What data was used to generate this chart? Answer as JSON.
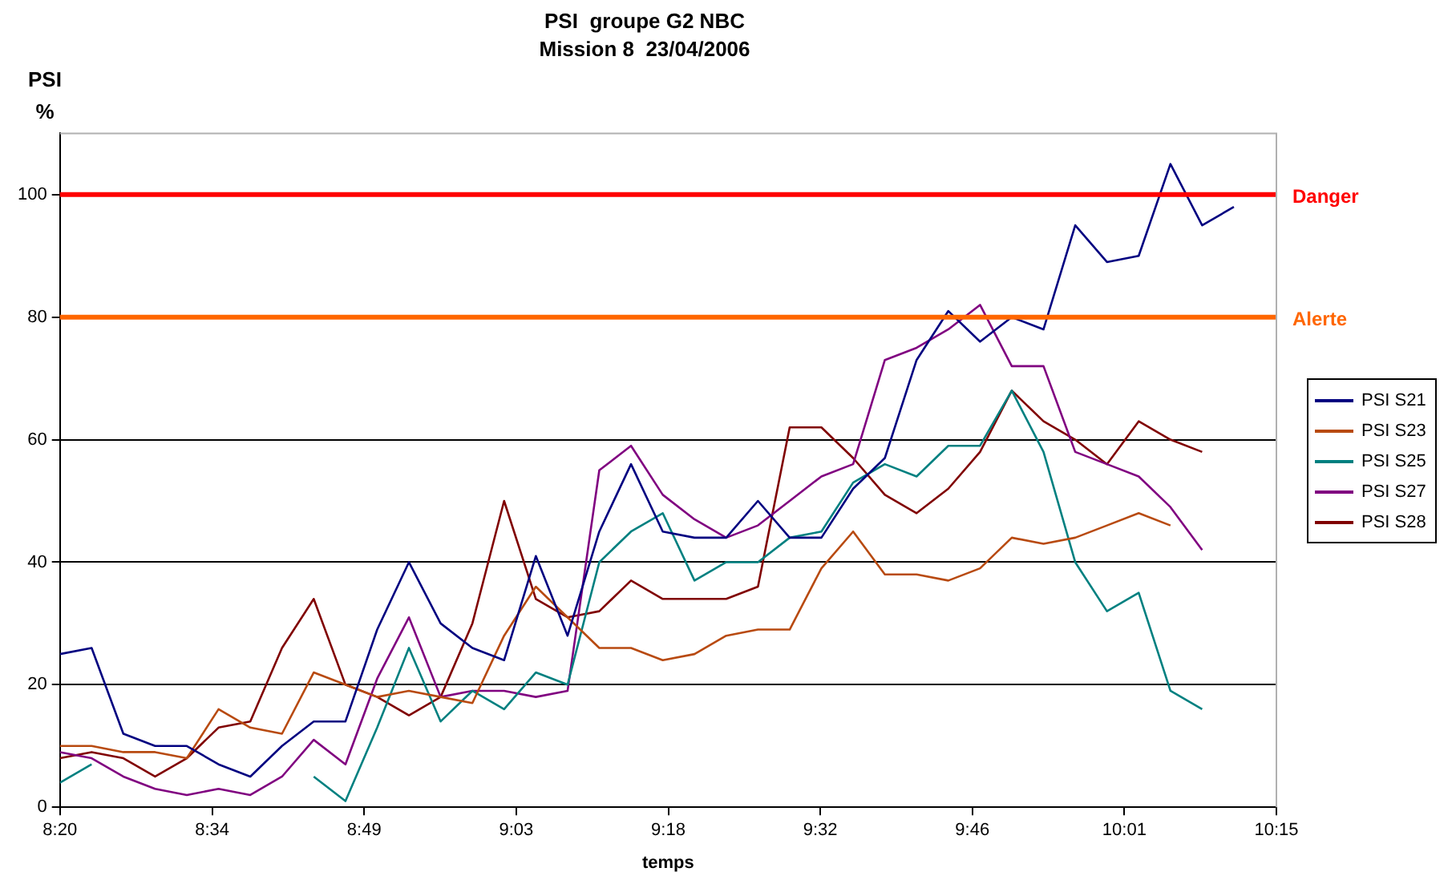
{
  "chart_data": {
    "type": "line",
    "title": "PSI  groupe G2 NBC",
    "subtitle": "Mission 8  23/04/2006",
    "xlabel": "temps",
    "ylabel": "PSI\n%",
    "x": [
      8.333,
      8.383,
      8.433,
      8.483,
      8.533,
      8.583,
      8.633,
      8.683,
      8.733,
      8.783,
      8.833,
      8.883,
      8.933,
      8.983,
      9.033,
      9.083,
      9.133,
      9.183,
      9.233,
      9.283,
      9.333,
      9.383,
      9.433,
      9.483,
      9.533,
      9.583,
      9.633,
      9.683,
      9.733,
      9.783,
      9.833,
      9.883,
      9.933,
      9.983,
      10.033,
      10.083,
      10.133,
      10.183
    ],
    "series": [
      {
        "name": "PSI S21",
        "color": "#000080",
        "values": [
          25,
          26,
          12,
          10,
          10,
          7,
          5,
          10,
          14,
          14,
          29,
          40,
          30,
          26,
          24,
          41,
          28,
          45,
          56,
          45,
          44,
          44,
          50,
          44,
          44,
          52,
          57,
          73,
          81,
          76,
          80,
          78,
          95,
          89,
          90,
          105,
          95,
          98
        ]
      },
      {
        "name": "PSI S23",
        "color": "#b84a10",
        "values": [
          10,
          10,
          9,
          9,
          8,
          16,
          13,
          12,
          22,
          20,
          18,
          19,
          18,
          17,
          28,
          36,
          31,
          26,
          26,
          24,
          25,
          28,
          29,
          29,
          39,
          45,
          38,
          38,
          37,
          39,
          44,
          43,
          44,
          46,
          48,
          46,
          null,
          null
        ]
      },
      {
        "name": "PSI S25",
        "color": "#008080",
        "values": [
          4,
          7,
          null,
          null,
          null,
          null,
          null,
          null,
          5,
          1,
          13,
          26,
          14,
          19,
          16,
          22,
          20,
          40,
          45,
          48,
          37,
          40,
          40,
          44,
          45,
          53,
          56,
          54,
          59,
          59,
          68,
          58,
          40,
          32,
          35,
          19,
          16,
          null
        ]
      },
      {
        "name": "PSI S27",
        "color": "#800080",
        "values": [
          9,
          8,
          5,
          3,
          2,
          3,
          2,
          5,
          11,
          7,
          21,
          31,
          18,
          19,
          19,
          18,
          19,
          55,
          59,
          51,
          47,
          44,
          46,
          50,
          54,
          56,
          73,
          75,
          78,
          82,
          72,
          72,
          58,
          56,
          54,
          49,
          42,
          null
        ]
      },
      {
        "name": "PSI S28",
        "color": "#800000",
        "values": [
          8,
          9,
          8,
          5,
          8,
          13,
          14,
          26,
          34,
          20,
          18,
          15,
          18,
          30,
          50,
          34,
          31,
          32,
          37,
          34,
          34,
          34,
          36,
          62,
          62,
          57,
          51,
          48,
          52,
          58,
          68,
          63,
          60,
          56,
          63,
          60,
          58,
          null
        ]
      }
    ],
    "xlim": [
      8.333,
      10.25
    ],
    "xticks": [
      {
        "value": 8.333,
        "label": "8:20"
      },
      {
        "value": 8.5729,
        "label": "8:34"
      },
      {
        "value": 8.8125,
        "label": "8:49"
      },
      {
        "value": 9.0521,
        "label": "9:03"
      },
      {
        "value": 9.2917,
        "label": "9:18"
      },
      {
        "value": 9.5313,
        "label": "9:32"
      },
      {
        "value": 9.7708,
        "label": "9:46"
      },
      {
        "value": 10.0104,
        "label": "10:01"
      },
      {
        "value": 10.25,
        "label": "10:15"
      }
    ],
    "ylim": [
      0,
      110
    ],
    "yticks": [
      0,
      20,
      40,
      60,
      80,
      100
    ],
    "ref_lines": [
      {
        "axis": "y",
        "value": 100,
        "label": "Danger",
        "color": "#ff0000"
      },
      {
        "axis": "y",
        "value": 80,
        "label": "Alerte",
        "color": "#ff6600"
      }
    ],
    "grid": "y",
    "legend": "right",
    "marker": "none",
    "line_style": "solid"
  }
}
